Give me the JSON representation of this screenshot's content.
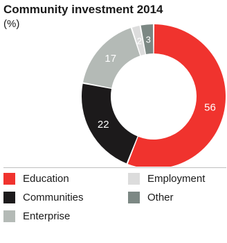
{
  "chart_data": {
    "type": "pie",
    "title": "Community investment 2014",
    "subtitle": "(%)",
    "donut": true,
    "slices": [
      {
        "label": "Education",
        "value": 56,
        "color": "#f0332e",
        "label_color": "#ffffff",
        "show_value": true
      },
      {
        "label": "Communities",
        "value": 22,
        "color": "#1c1a1b",
        "label_color": "#ffffff",
        "show_value": true
      },
      {
        "label": "Enterprise",
        "value": 17,
        "color": "#b4bab6",
        "label_color": "#ffffff",
        "show_value": true
      },
      {
        "label": "Employment",
        "value": 2,
        "color": "#dcdcdc",
        "label_color": "#ffffff",
        "show_value": true
      },
      {
        "label": "Other",
        "value": 3,
        "color": "#7c8884",
        "label_color": "#ffffff",
        "show_value": true
      }
    ],
    "legend": {
      "position": "bottom",
      "columns": [
        [
          "Education",
          "Communities",
          "Enterprise"
        ],
        [
          "Employment",
          "Other"
        ]
      ]
    }
  }
}
